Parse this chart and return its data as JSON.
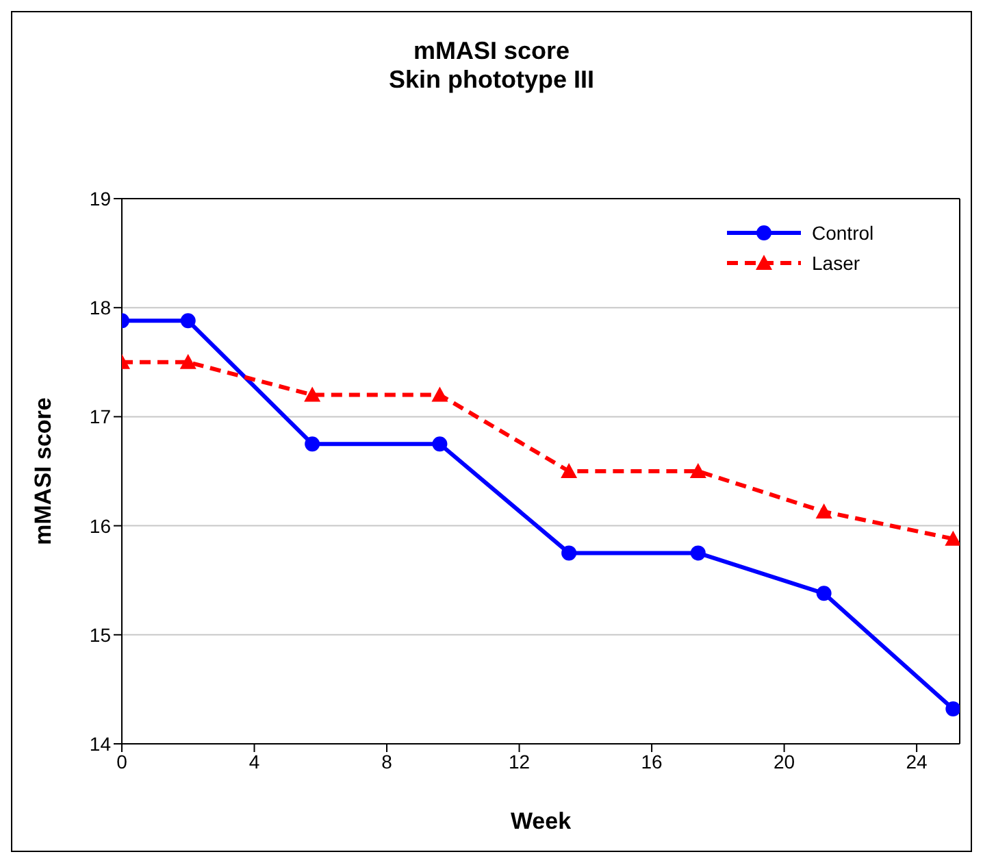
{
  "chart_data": {
    "type": "line",
    "title": "mMASI score\nSkin phototype III",
    "xlabel": "Week",
    "ylabel": "mMASI score",
    "xlim": [
      0,
      25.3
    ],
    "xticks": [
      0,
      4,
      8,
      12,
      16,
      20,
      24
    ],
    "ylim": [
      14,
      19
    ],
    "yticks": [
      14,
      15,
      16,
      17,
      18,
      19
    ],
    "grid": "y",
    "legend": "top right",
    "series": [
      {
        "name": "Control",
        "color": "#0000ff",
        "marker": "circle",
        "line_style": "solid",
        "x": [
          0,
          2,
          5.75,
          9.6,
          13.5,
          17.4,
          21.2,
          25.1
        ],
        "values": [
          17.88,
          17.88,
          16.75,
          16.75,
          15.75,
          15.75,
          15.38,
          14.32
        ]
      },
      {
        "name": "Laser",
        "color": "#ff0000",
        "marker": "triangle",
        "line_style": "dashed",
        "x": [
          0,
          2,
          5.75,
          9.6,
          13.5,
          17.4,
          21.2,
          25.1
        ],
        "values": [
          17.5,
          17.5,
          17.2,
          17.2,
          16.5,
          16.5,
          16.13,
          15.88
        ]
      }
    ]
  }
}
